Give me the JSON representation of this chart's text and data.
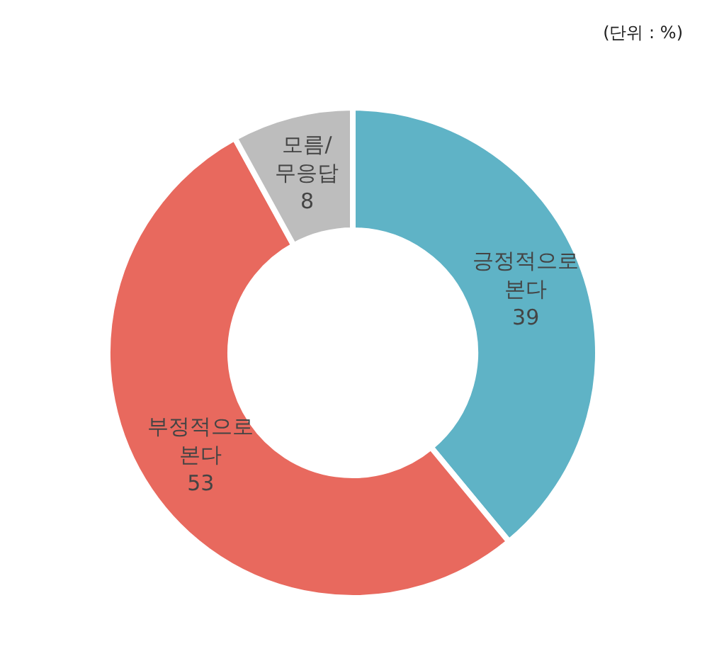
{
  "chart_data": {
    "type": "donut",
    "categories": [
      "긍정적으로 본다",
      "부정적으로 본다",
      "모름/무응답"
    ],
    "values": [
      39,
      53,
      8
    ],
    "colors": [
      "#5fb3c6",
      "#e8695e",
      "#bdbdbd"
    ],
    "data_labels": true,
    "legend": false,
    "annotations": [
      "(단위 : %)"
    ]
  }
}
